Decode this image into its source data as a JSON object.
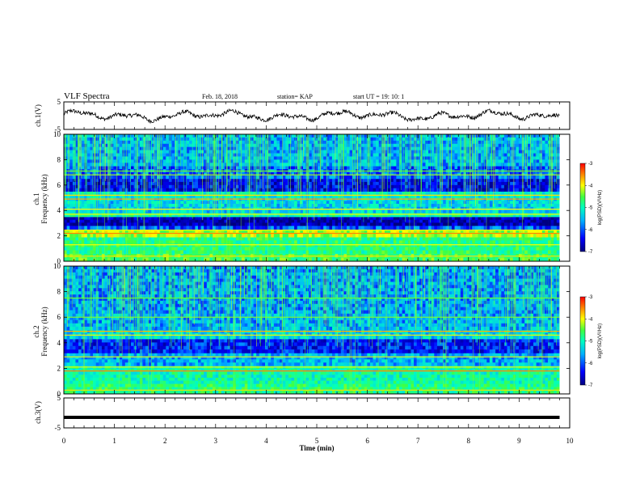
{
  "header": {
    "title": "VLF Spectra",
    "date": "Feb. 18, 2018",
    "station": "station= KAP",
    "start": "start  UT =    19: 10: 1"
  },
  "colors": {
    "waveform": "#000000",
    "axes": "#000000",
    "colormap": [
      "#000080",
      "#0000ff",
      "#00b0ff",
      "#00ffc0",
      "#40ff40",
      "#ffff00",
      "#ff8000",
      "#ff0000"
    ]
  },
  "chart_data": [
    {
      "type": "line",
      "name": "ch.1 waveform",
      "ylabel": "ch.1(V)",
      "ylim": [
        -5,
        5
      ],
      "yticks": [
        "5",
        "-5"
      ],
      "xlim": [
        0,
        10
      ],
      "description_values": "oscillating trace roughly between -1.5 and 1.5 V over 0 to 9.8 min"
    },
    {
      "type": "heatmap",
      "name": "ch.1 spectrogram",
      "ylabel": "ch.1\nFrequency (kHz)",
      "ylim": [
        0,
        10
      ],
      "yticks": [
        "0",
        "2",
        "4",
        "6",
        "8",
        "10"
      ],
      "xlim": [
        0,
        10
      ],
      "data_end_min": 9.8,
      "colorbar": {
        "label": "log(PSD)(V²/Hz)",
        "range": [
          -7,
          -3
        ],
        "ticks": [
          "-3",
          "-4",
          "-5",
          "-6",
          "-7"
        ]
      },
      "bands": [
        {
          "f0": 0.0,
          "f1": 0.6,
          "level": 0.55
        },
        {
          "f0": 0.6,
          "f1": 1.9,
          "level": 0.5
        },
        {
          "f0": 1.9,
          "f1": 2.5,
          "level": 0.65
        },
        {
          "f0": 2.5,
          "f1": 2.8,
          "level": 0.2
        },
        {
          "f0": 2.8,
          "f1": 3.5,
          "level": 0.05
        },
        {
          "f0": 3.5,
          "f1": 3.8,
          "level": 0.45
        },
        {
          "f0": 3.8,
          "f1": 5.0,
          "level": 0.35
        },
        {
          "f0": 5.0,
          "f1": 5.5,
          "level": 0.4
        },
        {
          "f0": 5.5,
          "f1": 6.5,
          "level": 0.12
        },
        {
          "f0": 6.5,
          "f1": 7.5,
          "level": 0.22
        },
        {
          "f0": 7.5,
          "f1": 10.0,
          "level": 0.3
        }
      ],
      "lines": [
        {
          "f": 0.4,
          "level": 0.75
        },
        {
          "f": 1.3,
          "level": 0.7
        },
        {
          "f": 2.2,
          "level": 0.85
        },
        {
          "f": 2.45,
          "level": 0.7
        },
        {
          "f": 3.7,
          "level": 0.7
        },
        {
          "f": 4.1,
          "level": 0.72
        },
        {
          "f": 4.9,
          "level": 0.8
        },
        {
          "f": 5.2,
          "level": 0.75
        },
        {
          "f": 6.8,
          "level": 0.65
        },
        {
          "f": 7.1,
          "level": 0.6
        }
      ]
    },
    {
      "type": "heatmap",
      "name": "ch.2 spectrogram",
      "ylabel": "ch.2\nFrequency (kHz)",
      "ylim": [
        0,
        10
      ],
      "yticks": [
        "0",
        "2",
        "4",
        "6",
        "8",
        "10"
      ],
      "xlim": [
        0,
        10
      ],
      "data_end_min": 9.8,
      "colorbar": {
        "label": "log(PSD)(V²/Hz)",
        "range": [
          -7,
          -3
        ],
        "ticks": [
          "-3",
          "-4",
          "-5",
          "-6",
          "-7"
        ]
      },
      "bands": [
        {
          "f0": 0.0,
          "f1": 0.8,
          "level": 0.5
        },
        {
          "f0": 0.8,
          "f1": 2.2,
          "level": 0.45
        },
        {
          "f0": 2.2,
          "f1": 3.2,
          "level": 0.3
        },
        {
          "f0": 3.2,
          "f1": 4.3,
          "level": 0.15
        },
        {
          "f0": 4.3,
          "f1": 5.0,
          "level": 0.35
        },
        {
          "f0": 5.0,
          "f1": 6.3,
          "level": 0.3
        },
        {
          "f0": 6.3,
          "f1": 10.0,
          "level": 0.28
        }
      ],
      "lines": [
        {
          "f": 0.3,
          "level": 0.75
        },
        {
          "f": 1.8,
          "level": 0.85
        },
        {
          "f": 2.1,
          "level": 0.7
        },
        {
          "f": 2.9,
          "level": 0.7
        },
        {
          "f": 4.6,
          "level": 0.72
        },
        {
          "f": 4.9,
          "level": 0.8
        },
        {
          "f": 6.0,
          "level": 0.62
        },
        {
          "f": 7.5,
          "level": 0.6
        }
      ]
    },
    {
      "type": "line",
      "name": "ch.3 waveform",
      "ylabel": "ch.3(V)",
      "ylim": [
        -5,
        5
      ],
      "yticks": [
        "5",
        "-5"
      ],
      "xlim": [
        0,
        10
      ],
      "constant_value": -1.5,
      "data_end_min": 9.8
    }
  ],
  "xaxis": {
    "label": "Time (min)",
    "ticks": [
      "0",
      "1",
      "2",
      "3",
      "4",
      "5",
      "6",
      "7",
      "8",
      "9",
      "10"
    ]
  }
}
